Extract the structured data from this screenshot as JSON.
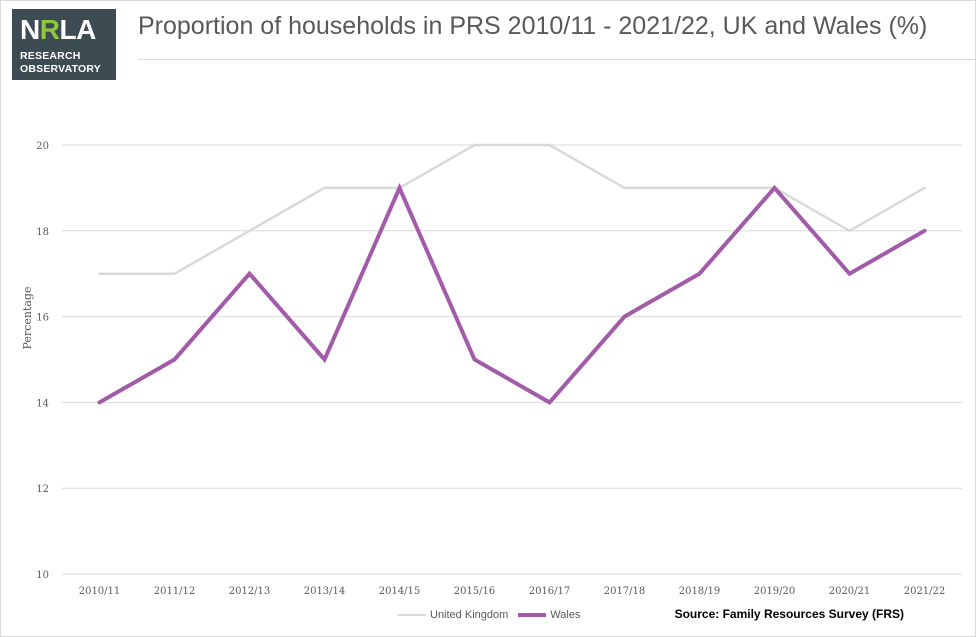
{
  "logo": {
    "mark_main": "N",
    "mark_accent": "R",
    "mark_rest": "LA",
    "line1": "RESEARCH",
    "line2": "OBSERVATORY",
    "colors": {
      "background": "#3d4b53",
      "accent": "#8dc63f"
    }
  },
  "source": "Source: Family Resources Survey (FRS)",
  "chart_data": {
    "type": "line",
    "title": "Proportion of households in PRS 2010/11 - 2021/22, UK and Wales (%)",
    "xlabel": "",
    "ylabel": "Percentage",
    "categories": [
      "2010/11",
      "2011/12",
      "2012/13",
      "2013/14",
      "2014/15",
      "2015/16",
      "2016/17",
      "2017/18",
      "2018/19",
      "2019/20",
      "2020/21",
      "2021/22"
    ],
    "ylim": [
      10,
      20
    ],
    "yticks": [
      "10",
      "12",
      "14",
      "16",
      "18",
      "20"
    ],
    "grid": true,
    "legend_position": "bottom",
    "series": [
      {
        "name": "United Kingdom",
        "color": "#d9d9d9",
        "values": [
          17,
          17,
          18,
          19,
          19,
          20,
          20,
          19,
          19,
          19,
          18,
          19
        ]
      },
      {
        "name": "Wales",
        "color": "#a15ba8",
        "values": [
          14,
          15,
          17,
          15,
          19,
          15,
          14,
          16,
          17,
          19,
          17,
          18
        ]
      }
    ]
  }
}
